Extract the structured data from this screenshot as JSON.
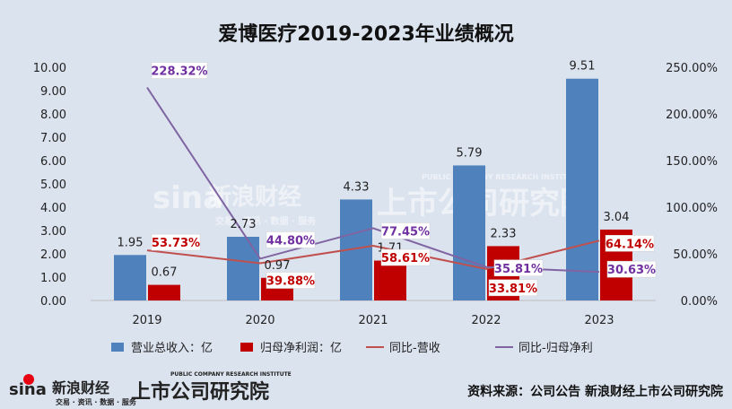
{
  "chart_data": {
    "type": "bar",
    "title": "爱博医疗2019-2023年业绩概况",
    "categories": [
      "2019",
      "2020",
      "2021",
      "2022",
      "2023"
    ],
    "ylim": [
      0,
      10
    ],
    "y2lim": [
      0,
      250
    ],
    "y_ticks": [
      "0.00",
      "1.00",
      "2.00",
      "3.00",
      "4.00",
      "5.00",
      "6.00",
      "7.00",
      "8.00",
      "9.00",
      "10.00"
    ],
    "y2_ticks": [
      "0.00%",
      "50.00%",
      "100.00%",
      "150.00%",
      "200.00%",
      "250.00%"
    ],
    "grid": false,
    "legend_position": "bottom",
    "series": [
      {
        "name": "营业总收入：亿",
        "kind": "bar",
        "color": "#4f81bd",
        "values": [
          1.95,
          2.73,
          4.33,
          5.79,
          9.51
        ],
        "labels": [
          "1.95",
          "2.73",
          "4.33",
          "5.79",
          "9.51"
        ]
      },
      {
        "name": "归母净利润：亿",
        "kind": "bar",
        "color": "#c00000",
        "values": [
          0.67,
          0.97,
          1.71,
          2.33,
          3.04
        ],
        "labels": [
          "0.67",
          "0.97",
          "1.71",
          "2.33",
          "3.04"
        ]
      },
      {
        "name": "同比-营收",
        "kind": "line",
        "axis": "right",
        "color": "#c0504d",
        "values": [
          53.73,
          39.88,
          58.61,
          33.81,
          64.14
        ],
        "labels": [
          "53.73%",
          "39.88%",
          "58.61%",
          "33.81%",
          "64.14%"
        ]
      },
      {
        "name": "同比-归母净利",
        "kind": "line",
        "axis": "right",
        "color": "#8064a2",
        "values": [
          228.32,
          44.8,
          77.45,
          35.81,
          30.63
        ],
        "labels": [
          "228.32%",
          "44.80%",
          "77.45%",
          "35.81%",
          "30.63%"
        ]
      }
    ]
  },
  "watermark": {
    "brand": "sina",
    "brand_cn": "新浪财经",
    "brand_sub": "交易 · 资讯 · 数据 · 服务",
    "institute": "上市公司研究院",
    "institute_en": "PUBLIC COMPANY RESEARCH INSTITUTE"
  },
  "footer": {
    "source": "资料来源：公司公告 新浪财经上市公司研究院"
  }
}
